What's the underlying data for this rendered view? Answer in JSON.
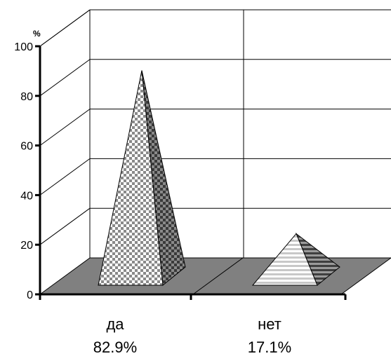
{
  "chart_data": {
    "type": "bar",
    "style": "3d-pyramid",
    "unit_label": "%",
    "categories": [
      "да",
      "нет"
    ],
    "values": [
      82.9,
      17.1
    ],
    "value_labels": [
      "82.9%",
      "17.1%"
    ],
    "y_ticks": [
      "0",
      "20",
      "40",
      "60",
      "80",
      "100"
    ],
    "ylim": [
      0,
      100
    ],
    "grid": true,
    "legend": "none"
  }
}
